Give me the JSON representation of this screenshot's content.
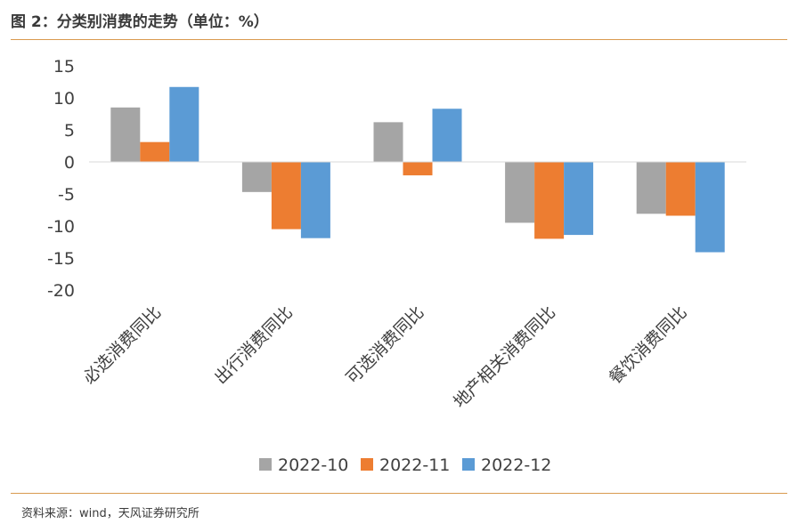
{
  "header": {
    "title": "图 2：分类别消费的走势（单位：%）"
  },
  "footer": {
    "source": "资料来源：wind，天风证券研究所"
  },
  "chart_data": {
    "type": "bar",
    "categories": [
      "必选消费同比",
      "出行消费同比",
      "可选消费同比",
      "地产相关消费同比",
      "餐饮消费同比"
    ],
    "series": [
      {
        "name": "2022-10",
        "color": "#a5a5a5",
        "values": [
          8.5,
          -4.7,
          6.2,
          -9.5,
          -8.1
        ]
      },
      {
        "name": "2022-11",
        "color": "#ed7d31",
        "values": [
          3.1,
          -10.5,
          -2.1,
          -12.0,
          -8.4
        ]
      },
      {
        "name": "2022-12",
        "color": "#5b9bd5",
        "values": [
          11.7,
          -11.9,
          8.3,
          -11.4,
          -14.1
        ]
      }
    ],
    "ylim": [
      -20,
      15
    ],
    "yticks": [
      -20,
      -15,
      -10,
      -5,
      0,
      5,
      10,
      15
    ],
    "grid": false,
    "legend_position": "bottom"
  }
}
